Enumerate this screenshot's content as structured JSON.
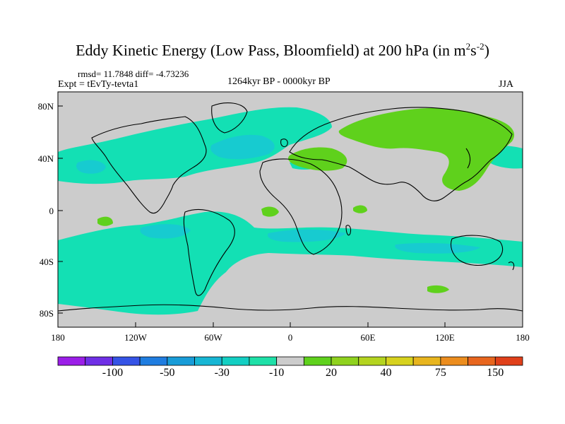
{
  "title": {
    "main": "Eddy Kinetic Energy (Low Pass, Bloomfield) at 200 hPa (in m",
    "sup1": "2",
    "mid": "s",
    "sup2": "-2",
    "end": ")"
  },
  "stats": "rmsd= 11.7848 diff= -4.73236",
  "experiment": "Expt = tEvTy-tevta1",
  "period": "1264kyr BP - 0000kyr BP",
  "season": "JJA",
  "y_ticks": [
    "80N",
    "40N",
    "0",
    "40S",
    "80S"
  ],
  "x_ticks": [
    "180",
    "120W",
    "60W",
    "0",
    "60E",
    "120E",
    "180"
  ],
  "colorbar": {
    "colors": [
      "#9b1ee8",
      "#6f2fe6",
      "#3553e6",
      "#1f7de0",
      "#189cd8",
      "#17b6d4",
      "#13cfc3",
      "#1ee0a8",
      "#cccccc",
      "#5fd11c",
      "#8fd21e",
      "#b4d41f",
      "#d7d21e",
      "#e8b51e",
      "#ec8d1e",
      "#e8661e",
      "#e0401a"
    ],
    "labels": [
      {
        "text": "-100",
        "boundary": 2
      },
      {
        "text": "-50",
        "boundary": 4
      },
      {
        "text": "-30",
        "boundary": 6
      },
      {
        "text": "-10",
        "boundary": 8
      },
      {
        "text": "20",
        "boundary": 10
      },
      {
        "text": "40",
        "boundary": 12
      },
      {
        "text": "75",
        "boundary": 14
      },
      {
        "text": "150",
        "boundary": 16
      }
    ]
  },
  "field_colors": {
    "background": "#cccccc",
    "neg_light": "#13e0b4",
    "neg_mid": "#17cbd0",
    "neg_dark": "#22a8dc",
    "pos": "#5fd11c",
    "coast": "#000000"
  }
}
